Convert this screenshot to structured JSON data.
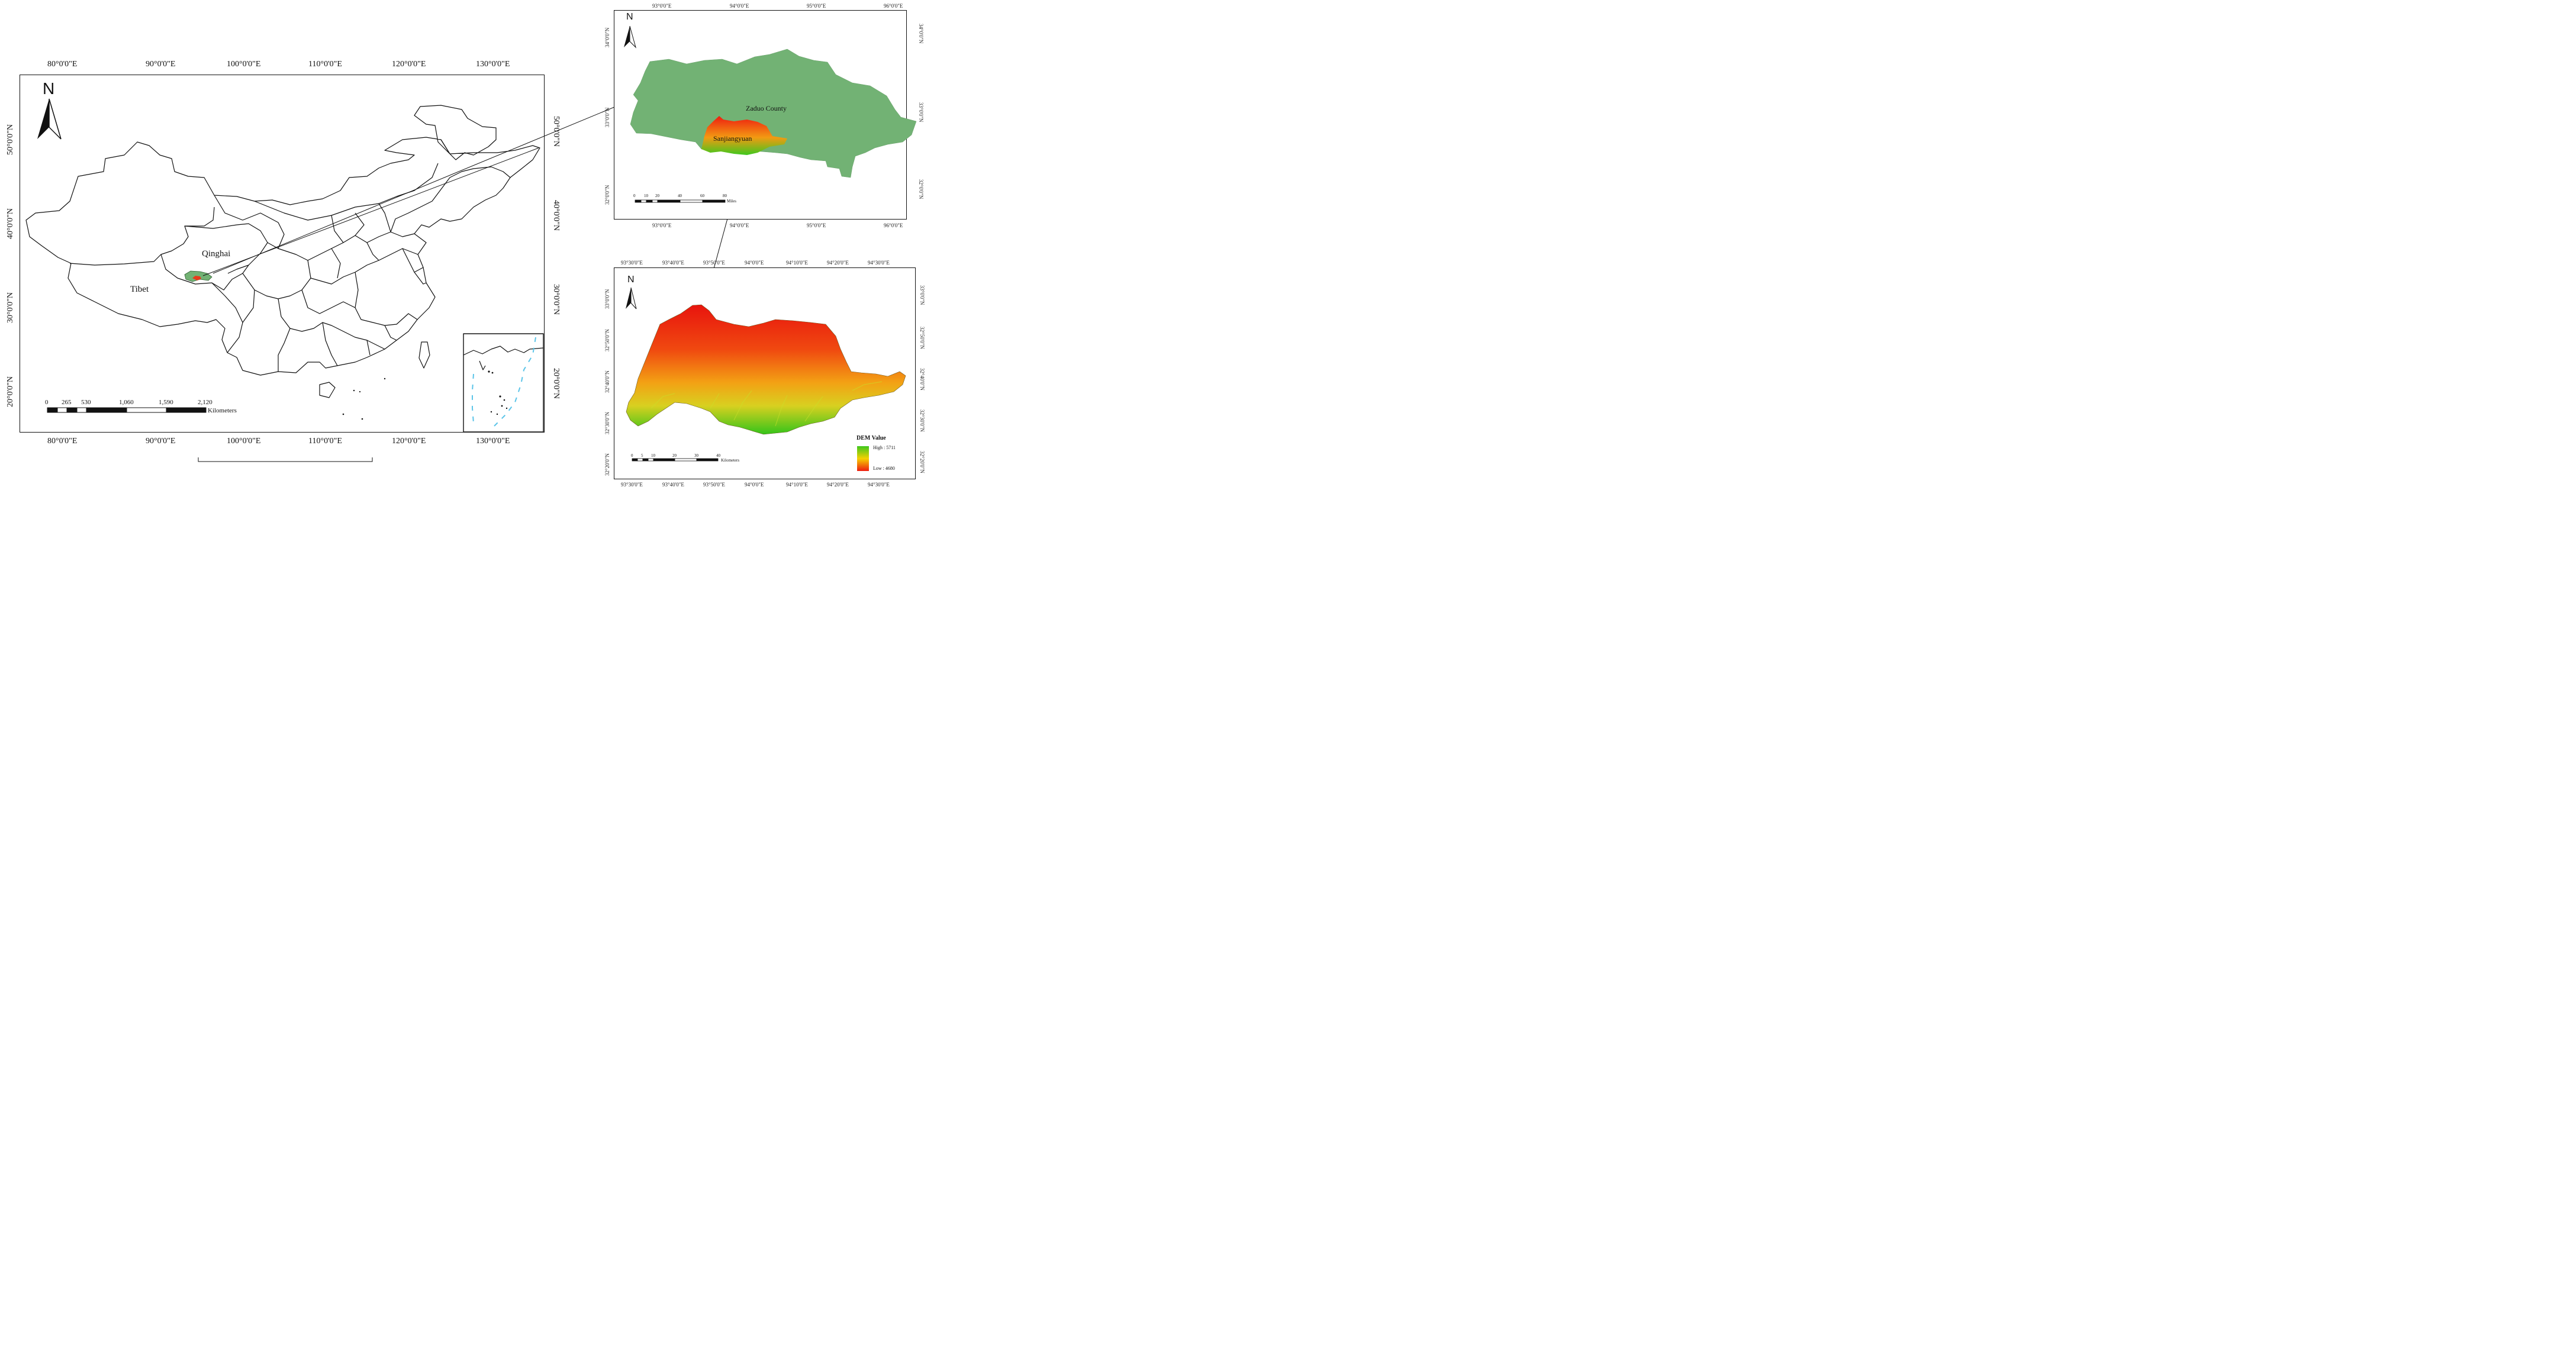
{
  "main_map": {
    "top_ticks": [
      "80°0'0\"E",
      "90°0'0\"E",
      "100°0'0\"E",
      "110°0'0\"E",
      "120°0'0\"E",
      "130°0'0\"E"
    ],
    "bottom_ticks": [
      "80°0'0\"E",
      "90°0'0\"E",
      "100°0'0\"E",
      "110°0'0\"E",
      "120°0'0\"E",
      "130°0'0\"E"
    ],
    "left_ticks": [
      "50°0'0\"N",
      "40°0'0\"N",
      "30°0'0\"N",
      "20°0'0\"N"
    ],
    "right_ticks": [
      "50°0'0\"N",
      "40°0'0\"N",
      "30°0'0\"N",
      "20°0'0\"N"
    ],
    "north": "N",
    "labels": {
      "qinghai": "Qinghai",
      "tibet": "Tibet"
    },
    "scalebar": {
      "ticks": [
        "0",
        "265",
        "530",
        "1,060",
        "1,590",
        "2,120"
      ],
      "unit": "Kilometers"
    }
  },
  "county_map": {
    "top_ticks": [
      "93°0'0\"E",
      "94°0'0\"E",
      "95°0'0\"E",
      "96°0'0\"E"
    ],
    "bottom_ticks": [
      "93°0'0\"E",
      "94°0'0\"E",
      "95°0'0\"E",
      "96°0'0\"E"
    ],
    "left_ticks": [
      "34°0'0\"N",
      "33°0'0\"N",
      "32°0'0\"N"
    ],
    "right_ticks": [
      "34°0'0\"N",
      "33°0'0\"N",
      "32°0'0\"N"
    ],
    "north": "N",
    "labels": {
      "county": "Zaduo County",
      "region": "Sanjiangyuan"
    },
    "scalebar": {
      "ticks": [
        "0",
        "10",
        "20",
        "40",
        "60",
        "80"
      ],
      "unit": "Miles"
    }
  },
  "dem_map": {
    "top_ticks": [
      "93°30'0\"E",
      "93°40'0\"E",
      "93°50'0\"E",
      "94°0'0\"E",
      "94°10'0\"E",
      "94°20'0\"E",
      "94°30'0\"E"
    ],
    "bottom_ticks": [
      "93°30'0\"E",
      "93°40'0\"E",
      "93°50'0\"E",
      "94°0'0\"E",
      "94°10'0\"E",
      "94°20'0\"E",
      "94°30'0\"E"
    ],
    "left_ticks": [
      "33°0'0\"N",
      "32°50'0\"N",
      "32°40'0\"N",
      "32°30'0\"N",
      "32°20'0\"N"
    ],
    "right_ticks": [
      "33°0'0\"N",
      "32°50'0\"N",
      "32°40'0\"N",
      "32°30'0\"N",
      "32°20'0\"N"
    ],
    "north": "N",
    "scalebar": {
      "ticks": [
        "0",
        "5",
        "10",
        "20",
        "30",
        "40"
      ],
      "unit": "Kilometers"
    },
    "legend": {
      "title": "DEM Value",
      "high": "High : 5711",
      "low": "Low : 4680"
    }
  },
  "colors": {
    "county_fill": "#72b274",
    "dem_high": "#ee1c10",
    "dem_mid": "#f5b800",
    "dem_low": "#3ec81e"
  }
}
